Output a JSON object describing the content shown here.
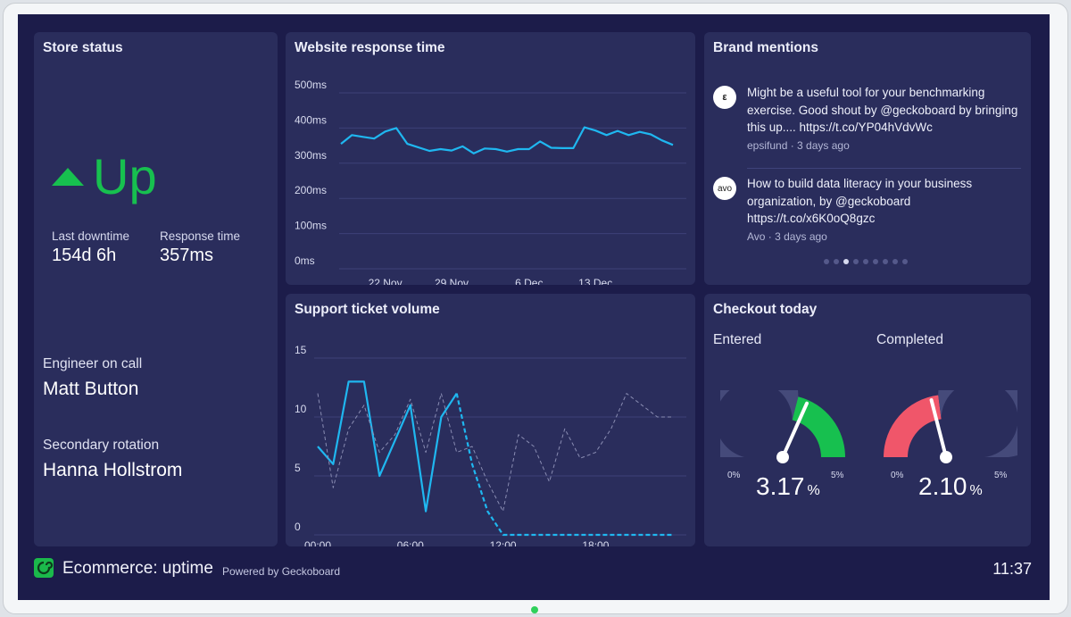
{
  "store": {
    "title": "Store status",
    "status": "Up",
    "last_downtime_label": "Last downtime",
    "last_downtime_value": "154d 6h",
    "response_time_label": "Response time",
    "response_time_value": "357ms",
    "engineer_label": "Engineer on call",
    "engineer_value": "Matt Button",
    "secondary_label": "Secondary rotation",
    "secondary_value": "Hanna Hollstrom",
    "status_color": "#17c04f"
  },
  "mentions": {
    "title": "Brand mentions",
    "items": [
      {
        "avatar": "ε",
        "text": "Might be a useful tool for your benchmarking exercise. Good shout by @geckoboard by bringing this up.... https://t.co/YP04hVdvWc",
        "meta": "epsifund · 3 days ago"
      },
      {
        "avatar": "avo",
        "text": "How to build data literacy in your business organization, by @geckoboard https://t.co/x6K0oQ8gzc",
        "meta": "Avo · 3 days ago"
      }
    ],
    "page_count": 9,
    "active_page": 3
  },
  "checkout": {
    "title": "Checkout today",
    "gauges": [
      {
        "label": "Entered",
        "value": "3.17",
        "unit": "%",
        "min_label": "0%",
        "max_label": "5%",
        "numeric": 3.17,
        "min": 0,
        "max": 5,
        "target": 2.9,
        "color": "#17c04f"
      },
      {
        "label": "Completed",
        "value": "2.10",
        "unit": "%",
        "min_label": "0%",
        "max_label": "5%",
        "numeric": 2.1,
        "min": 0,
        "max": 5,
        "target": 2.3,
        "color": "#f0566a"
      }
    ]
  },
  "footer": {
    "title": "Ecommerce: uptime",
    "powered": "Powered by Geckoboard",
    "time": "11:37"
  },
  "chart_data": [
    {
      "type": "line",
      "title": "Website response time",
      "y_ticks": [
        "500ms",
        "400ms",
        "300ms",
        "200ms",
        "100ms",
        "0ms"
      ],
      "ylim": [
        0,
        500
      ],
      "x_ticks": [
        {
          "label": "22 Nov",
          "index": 4
        },
        {
          "label": "29 Nov",
          "index": 10
        },
        {
          "label": "6 Dec",
          "index": 17
        },
        {
          "label": "13 Dec",
          "index": 23
        }
      ],
      "grid": true,
      "series": [
        {
          "color": "#1fb7f0",
          "values": [
            355,
            380,
            375,
            370,
            390,
            400,
            355,
            345,
            335,
            340,
            336,
            348,
            328,
            342,
            340,
            333,
            340,
            340,
            362,
            344,
            343,
            343,
            402,
            393,
            380,
            392,
            380,
            389,
            382,
            365,
            352
          ]
        }
      ]
    },
    {
      "type": "line",
      "title": "Support ticket volume",
      "y_ticks": [
        "15",
        "10",
        "5",
        "0"
      ],
      "ylim": [
        0,
        15
      ],
      "x_ticks": [
        {
          "label": "00:00",
          "index": 0
        },
        {
          "label": "06:00",
          "index": 6
        },
        {
          "label": "12:00",
          "index": 12
        },
        {
          "label": "18:00",
          "index": 18
        }
      ],
      "grid": true,
      "series": [
        {
          "color": "#1fb7f0",
          "style": "solid",
          "values": [
            7.5,
            6,
            13,
            13,
            5,
            8,
            11,
            2,
            10,
            12
          ]
        },
        {
          "color": "#1fb7f0",
          "style": "dashed",
          "start": 9,
          "values": [
            12,
            6,
            2,
            0,
            0,
            0,
            0,
            0,
            0,
            0,
            0,
            0,
            0,
            0,
            0
          ]
        },
        {
          "color": "#8a8db3",
          "style": "dashed",
          "values": [
            12,
            4,
            9,
            11,
            7,
            8.5,
            11.5,
            7,
            12,
            7,
            7.5,
            4.5,
            2,
            8.5,
            7.5,
            4.5,
            9,
            6.5,
            7,
            9,
            12,
            11,
            10,
            10
          ]
        }
      ]
    }
  ]
}
